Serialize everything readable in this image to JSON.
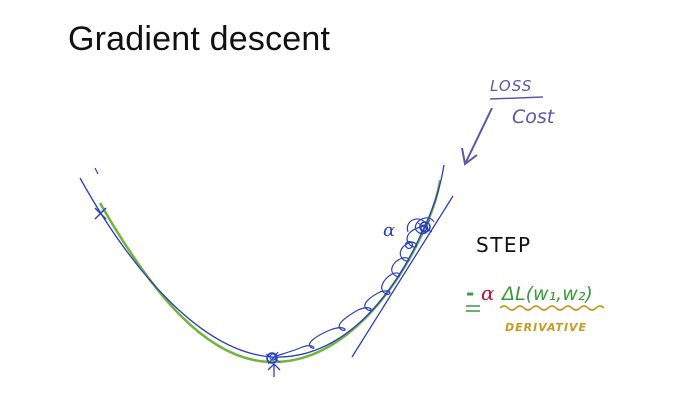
{
  "title": "Gradient descent",
  "annotations": {
    "loss": "LOSS",
    "cost": "Cost",
    "step": "STEP",
    "alpha": "α",
    "formula": {
      "minus": "-",
      "alpha": "α",
      "gradient": "ΔL(w₁,w₂)"
    },
    "derivative": "DERIVATIVE"
  },
  "colors": {
    "curve_green": "#6fb536",
    "ink_blue": "#2b3fc4",
    "arrow_purple": "#5a58a8",
    "formula_green": "#3a9a3a",
    "formula_red": "#c0143c",
    "underline_gold": "#c99a1e"
  }
}
